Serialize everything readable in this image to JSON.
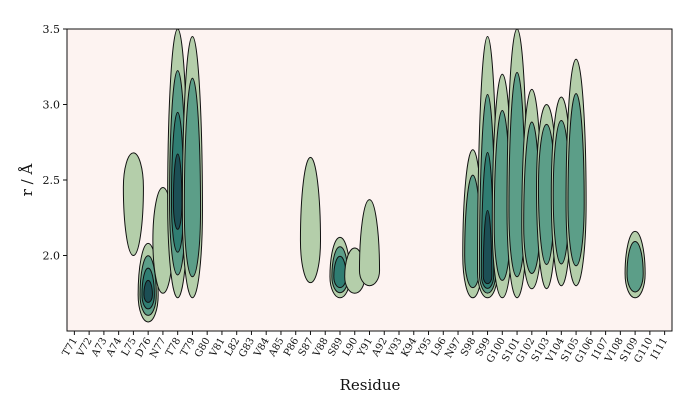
{
  "chart_data": {
    "type": "heatmap",
    "subtype": "filled-contour",
    "title": "",
    "xlabel": "Residue",
    "ylabel": "r / Å",
    "ylim": [
      1.5,
      3.5
    ],
    "yticks": [
      2.0,
      2.5,
      3.0,
      3.5
    ],
    "ytick_labels": [
      "2.0",
      "2.5",
      "3.0",
      "3.5"
    ],
    "categories": [
      "T71",
      "V72",
      "A73",
      "A74",
      "L75",
      "D76",
      "N77",
      "T78",
      "T79",
      "G80",
      "V81",
      "L82",
      "G83",
      "V84",
      "A85",
      "P86",
      "S87",
      "V88",
      "S89",
      "L90",
      "Y91",
      "A92",
      "V93",
      "K94",
      "Y95",
      "L96",
      "N97",
      "S98",
      "S99",
      "G100",
      "S101",
      "G102",
      "S103",
      "V104",
      "S105",
      "G106",
      "I107",
      "V108",
      "S109",
      "G110",
      "I111"
    ],
    "grid": false,
    "legend": "none",
    "colors": {
      "background": "#fdf3f1",
      "level1": "#b4ceaa",
      "level2": "#5c9e88",
      "level3": "#2f7d72",
      "level4": "#1c4f55",
      "outline": "#111111"
    },
    "density_regions": [
      {
        "residue": "L75",
        "r_min": 2.0,
        "r_max": 2.68,
        "peak_r": 2.45,
        "max_level": 1
      },
      {
        "residue": "D76",
        "r_min": 1.56,
        "r_max": 2.08,
        "peak_r": 1.74,
        "max_level": 4
      },
      {
        "residue": "N77",
        "r_min": 1.75,
        "r_max": 2.45,
        "peak_r": 2.1,
        "max_level": 1
      },
      {
        "residue": "T78",
        "r_min": 1.72,
        "r_max": 3.5,
        "peak_r": 2.35,
        "max_level": 4
      },
      {
        "residue": "T79",
        "r_min": 1.72,
        "r_max": 3.45,
        "peak_r": 2.3,
        "max_level": 2
      },
      {
        "residue": "S87",
        "r_min": 1.82,
        "r_max": 2.65,
        "peak_r": 2.1,
        "max_level": 1
      },
      {
        "residue": "S89",
        "r_min": 1.72,
        "r_max": 2.12,
        "peak_r": 1.86,
        "max_level": 3
      },
      {
        "residue": "L90",
        "r_min": 1.75,
        "r_max": 2.05,
        "peak_r": 1.86,
        "max_level": 1
      },
      {
        "residue": "Y91",
        "r_min": 1.8,
        "r_max": 2.37,
        "peak_r": 1.9,
        "max_level": 1
      },
      {
        "residue": "S98",
        "r_min": 1.72,
        "r_max": 2.7,
        "peak_r": 2.0,
        "max_level": 2
      },
      {
        "residue": "S99",
        "r_min": 1.72,
        "r_max": 3.45,
        "peak_r": 1.85,
        "max_level": 4
      },
      {
        "residue": "G100",
        "r_min": 1.72,
        "r_max": 3.2,
        "peak_r": 2.2,
        "max_level": 2
      },
      {
        "residue": "S101",
        "r_min": 1.72,
        "r_max": 3.5,
        "peak_r": 2.3,
        "max_level": 2
      },
      {
        "residue": "G102",
        "r_min": 1.78,
        "r_max": 3.1,
        "peak_r": 2.2,
        "max_level": 2
      },
      {
        "residue": "S103",
        "r_min": 1.78,
        "r_max": 3.0,
        "peak_r": 2.45,
        "max_level": 2
      },
      {
        "residue": "V104",
        "r_min": 1.8,
        "r_max": 3.05,
        "peak_r": 2.4,
        "max_level": 2
      },
      {
        "residue": "S105",
        "r_min": 1.8,
        "r_max": 3.3,
        "peak_r": 2.35,
        "max_level": 2
      },
      {
        "residue": "S109",
        "r_min": 1.72,
        "r_max": 2.16,
        "peak_r": 1.88,
        "max_level": 2
      }
    ]
  }
}
